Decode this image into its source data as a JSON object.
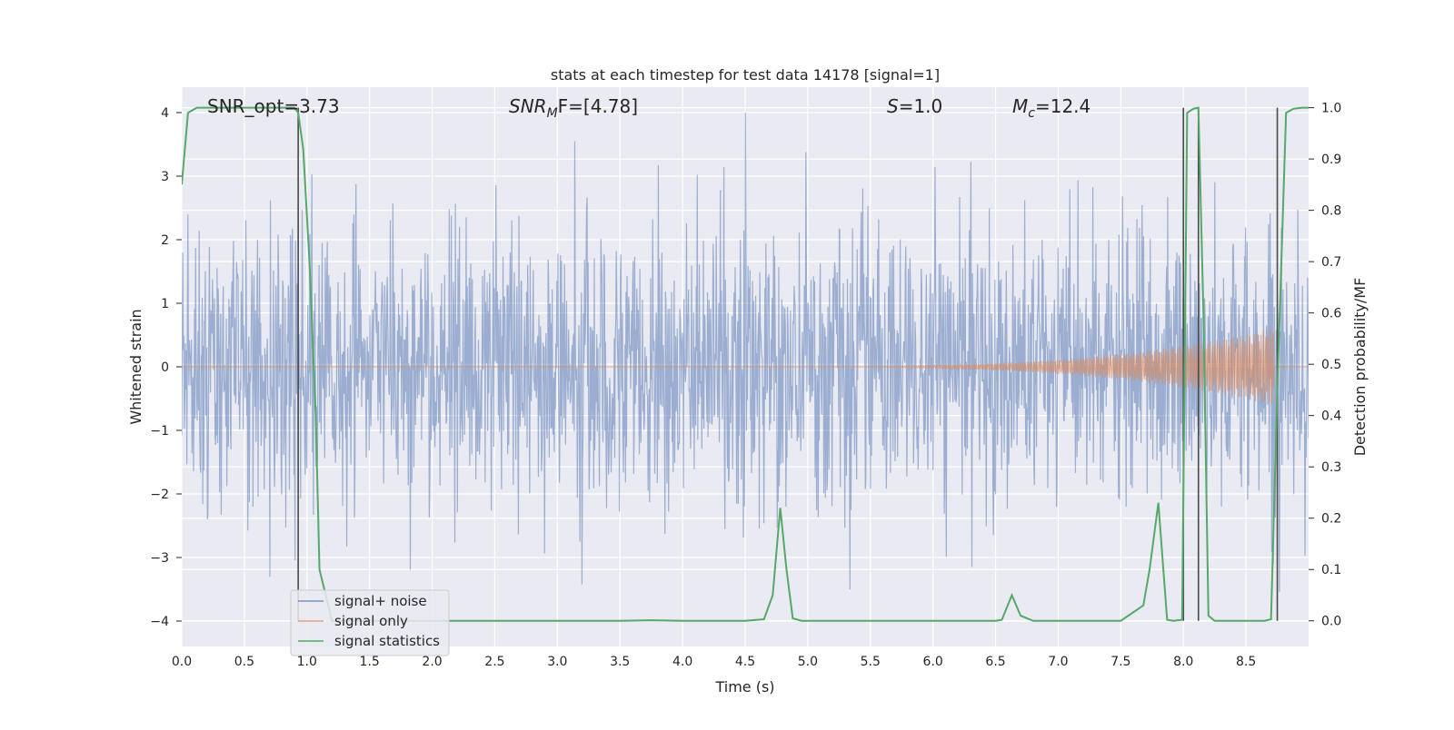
{
  "chart_data": {
    "type": "line",
    "title": "stats at each timestep for test data 14178 [signal=1]",
    "xlabel": "Time (s)",
    "ylabel_left": "Whitened strain",
    "ylabel_right": "Detection probability/MF",
    "xlim": [
      0.0,
      9.0
    ],
    "ylim_left": [
      -4.4,
      4.4
    ],
    "ylim_right": [
      -0.05,
      1.04
    ],
    "x_ticks": [
      "0.0",
      "0.5",
      "1.0",
      "1.5",
      "2.0",
      "2.5",
      "3.0",
      "3.5",
      "4.0",
      "4.5",
      "5.0",
      "5.5",
      "6.0",
      "6.5",
      "7.0",
      "7.5",
      "8.0",
      "8.5"
    ],
    "y_ticks_left": [
      "−4",
      "−3",
      "−2",
      "−1",
      "0",
      "1",
      "2",
      "3",
      "4"
    ],
    "y_ticks_right": [
      "0.0",
      "0.1",
      "0.2",
      "0.3",
      "0.4",
      "0.5",
      "0.6",
      "0.7",
      "0.8",
      "0.9",
      "1.0"
    ],
    "grid": true,
    "legend_placement": "lower-left",
    "annotations": {
      "snr_opt": "SNR_opt=3.73",
      "snr_mf_main": "SNR",
      "snr_mf_sub": "M",
      "snr_mf_rest": "F=[4.78]",
      "s_var": "S",
      "s_rest": "=1.0",
      "mc_var": "M",
      "mc_sub": "c",
      "mc_rest": "=12.4"
    },
    "series": [
      {
        "name": "signal+ noise",
        "color": "#4c72b0",
        "description_values": "noise envelope approx ±2.5 with spikes to ±4; typical band ±1.6",
        "envelope_typical": 1.6,
        "envelope_peak": 4.0
      },
      {
        "name": "signal only",
        "color": "#dd8452",
        "chirp_start": 4.5,
        "chirp_end": 8.72,
        "amplitude_peak": 0.6
      },
      {
        "name": "signal statistics",
        "color": "#55a868",
        "x": [
          0.0,
          0.05,
          0.12,
          0.2,
          0.3,
          0.4,
          0.5,
          0.6,
          0.7,
          0.8,
          0.9,
          0.93,
          0.97,
          1.02,
          1.07,
          1.1,
          1.2,
          1.5,
          2.0,
          2.5,
          3.0,
          3.5,
          3.75,
          4.0,
          4.5,
          4.65,
          4.72,
          4.78,
          4.83,
          4.88,
          4.95,
          5.0,
          5.5,
          6.0,
          6.5,
          6.55,
          6.63,
          6.7,
          6.8,
          7.0,
          7.5,
          7.68,
          7.73,
          7.8,
          7.87,
          7.92,
          7.99,
          8.03,
          8.08,
          8.12,
          8.16,
          8.2,
          8.25,
          8.5,
          8.65,
          8.7,
          8.75,
          8.82,
          8.88,
          8.95,
          9.0
        ],
        "values": [
          0.85,
          0.99,
          1.0,
          1.0,
          1.0,
          1.0,
          1.0,
          1.0,
          1.0,
          1.0,
          1.0,
          0.99,
          0.92,
          0.7,
          0.4,
          0.1,
          0.0,
          0.0,
          0.0,
          0.0,
          0.0,
          0.0,
          0.001,
          0.0,
          0.0,
          0.003,
          0.05,
          0.22,
          0.1,
          0.005,
          0.0,
          0.0,
          0.0,
          0.0,
          0.0,
          0.002,
          0.05,
          0.01,
          0.0,
          0.0,
          0.0,
          0.03,
          0.1,
          0.23,
          0.002,
          0.0,
          0.002,
          0.99,
          0.998,
          1.0,
          0.6,
          0.01,
          0.0,
          0.0,
          0.0,
          0.003,
          0.45,
          0.99,
          0.998,
          1.0,
          1.0
        ]
      }
    ],
    "vlines": [
      0.93,
      8.0,
      8.12,
      8.75
    ],
    "vline_color": "#4a4a4a"
  },
  "legend": {
    "item0": "signal+ noise",
    "item1": "signal only",
    "item2": "signal statistics"
  }
}
